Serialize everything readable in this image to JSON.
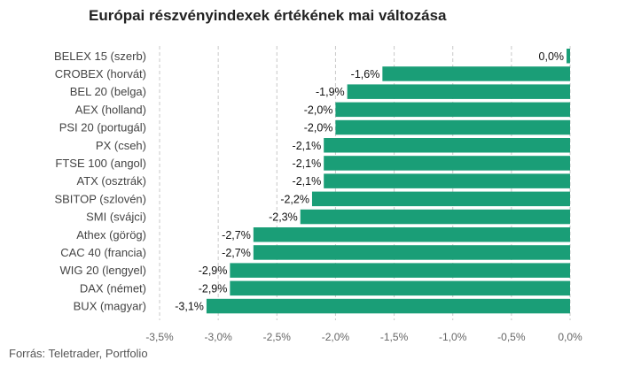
{
  "title": "Európai részvényindexek értékének mai változása",
  "source": "Forrás: Teletrader, Portfolio",
  "colors": {
    "bar": "#1a9e77",
    "grid": "#c8c8c8",
    "text": "#444444"
  },
  "chart_data": {
    "type": "bar",
    "orientation": "horizontal",
    "title": "Európai részvényindexek értékének mai változása",
    "xlabel": "",
    "ylabel": "",
    "categories": [
      "BELEX 15 (szerb)",
      "CROBEX (horvát)",
      "BEL 20 (belga)",
      "AEX (holland)",
      "PSI 20 (portugál)",
      "PX (cseh)",
      "FTSE 100 (angol)",
      "ATX (osztrák)",
      "SBITOP (szlovén)",
      "SMI (svájci)",
      "Athex (görög)",
      "CAC 40 (francia)",
      "WIG 20 (lengyel)",
      "DAX (német)",
      "BUX (magyar)"
    ],
    "values": [
      -0.03,
      -1.6,
      -1.9,
      -2.0,
      -2.0,
      -2.1,
      -2.1,
      -2.1,
      -2.2,
      -2.3,
      -2.7,
      -2.7,
      -2.9,
      -2.9,
      -3.1
    ],
    "value_labels": [
      "0,0%",
      "-1,6%",
      "-1,9%",
      "-2,0%",
      "-2,0%",
      "-2,1%",
      "-2,1%",
      "-2,1%",
      "-2,2%",
      "-2,3%",
      "-2,7%",
      "-2,7%",
      "-2,9%",
      "-2,9%",
      "-3,1%"
    ],
    "xlim": [
      -3.5,
      0.0
    ],
    "xticks": [
      -3.5,
      -3.0,
      -2.5,
      -2.0,
      -1.5,
      -1.0,
      -0.5,
      0.0
    ],
    "xtick_labels": [
      "-3,5%",
      "-3,0%",
      "-2,5%",
      "-2,0%",
      "-1,5%",
      "-1,0%",
      "-0,5%",
      "0,0%"
    ],
    "grid": "vertical-dashed",
    "legend": "none"
  }
}
